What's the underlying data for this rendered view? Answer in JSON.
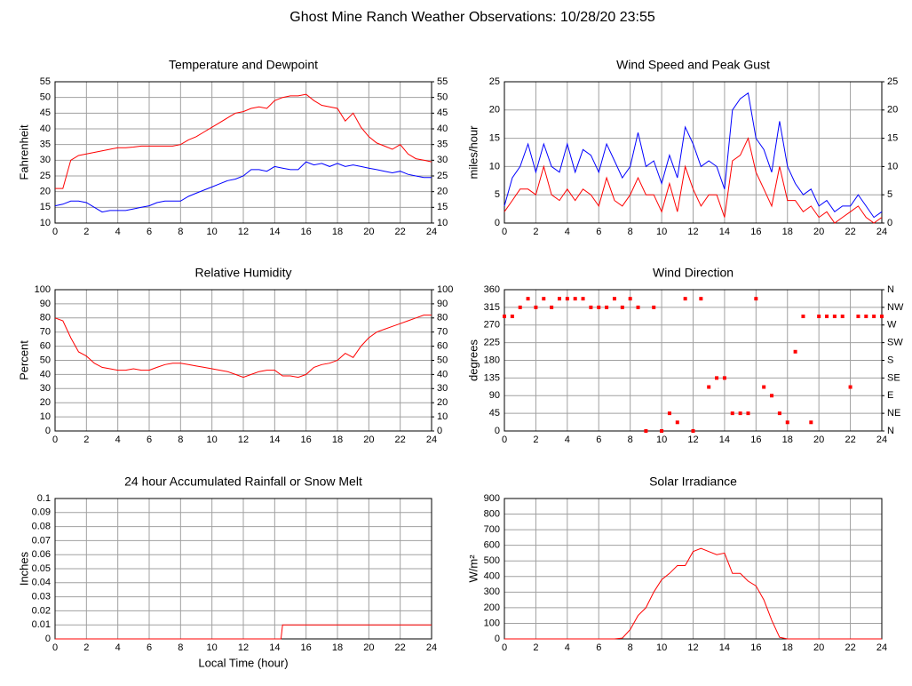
{
  "title": "Ghost Mine Ranch Weather Observations: 10/28/20 23:55",
  "chart_data": [
    {
      "type": "line",
      "title": "Temperature and Dewpoint",
      "ylabel": "Fahrenheit",
      "x": [
        0,
        0.5,
        1,
        1.5,
        2,
        2.5,
        3,
        3.5,
        4,
        4.5,
        5,
        5.5,
        6,
        6.5,
        7,
        7.5,
        8,
        8.5,
        9,
        9.5,
        10,
        10.5,
        11,
        11.5,
        12,
        12.5,
        13,
        13.5,
        14,
        14.5,
        15,
        15.5,
        16,
        16.5,
        17,
        17.5,
        18,
        18.5,
        19,
        19.5,
        20,
        20.5,
        21,
        21.5,
        22,
        22.5,
        23,
        23.5,
        24
      ],
      "series": [
        {
          "color": "#ff0000",
          "values": [
            21,
            21,
            30,
            31.5,
            32,
            32.5,
            33,
            33.5,
            34,
            34,
            34.2,
            34.5,
            34.5,
            34.5,
            34.5,
            34.5,
            35,
            36.5,
            37.5,
            39,
            40.5,
            42,
            43.5,
            45,
            45.5,
            46.5,
            47,
            46.5,
            49,
            50,
            50.5,
            50.5,
            51,
            49,
            47.5,
            47,
            46.5,
            42.5,
            45,
            40.5,
            37.5,
            35.5,
            34.5,
            33.5,
            35,
            32,
            30.5,
            30,
            29.5
          ]
        },
        {
          "color": "#0000ff",
          "values": [
            15.5,
            16,
            17,
            17,
            16.5,
            15,
            13.5,
            14,
            14,
            14,
            14.5,
            15,
            15.5,
            16.5,
            17,
            17,
            17,
            18.5,
            19.5,
            20.5,
            21.5,
            22.5,
            23.5,
            24,
            25,
            27,
            27,
            26.5,
            28,
            27.5,
            27,
            27,
            29.5,
            28.5,
            29,
            28,
            29,
            28,
            28.5,
            28,
            27.5,
            27,
            26.5,
            26,
            26.5,
            25.5,
            25,
            24.5,
            24.5
          ]
        }
      ],
      "xlim": [
        0,
        24
      ],
      "xticks": [
        0,
        2,
        4,
        6,
        8,
        10,
        12,
        14,
        16,
        18,
        20,
        22,
        24
      ],
      "ylim": [
        10,
        55
      ],
      "yticks": [
        10,
        15,
        20,
        25,
        30,
        35,
        40,
        45,
        50,
        55
      ],
      "y2lim": [
        10,
        55
      ],
      "y2ticks": [
        10,
        15,
        20,
        25,
        30,
        35,
        40,
        45,
        50,
        55
      ],
      "grid": true
    },
    {
      "type": "line",
      "title": "Wind Speed and Peak Gust",
      "ylabel": "miles/hour",
      "x": [
        0,
        0.5,
        1,
        1.5,
        2,
        2.5,
        3,
        3.5,
        4,
        4.5,
        5,
        5.5,
        6,
        6.5,
        7,
        7.5,
        8,
        8.5,
        9,
        9.5,
        10,
        10.5,
        11,
        11.5,
        12,
        12.5,
        13,
        13.5,
        14,
        14.5,
        15,
        15.5,
        16,
        16.5,
        17,
        17.5,
        18,
        18.5,
        19,
        19.5,
        20,
        20.5,
        21,
        21.5,
        22,
        22.5,
        23,
        23.5,
        24
      ],
      "series": [
        {
          "color": "#0000ff",
          "values": [
            3,
            8,
            10,
            14,
            9,
            14,
            10,
            9,
            14,
            9,
            13,
            12,
            9,
            14,
            11,
            8,
            10,
            16,
            10,
            11,
            7,
            12,
            8,
            17,
            14,
            10,
            11,
            10,
            6,
            20,
            22,
            23,
            15,
            13,
            9,
            18,
            10,
            7,
            5,
            6,
            3,
            4,
            2,
            3,
            3,
            5,
            3,
            1,
            2
          ]
        },
        {
          "color": "#ff0000",
          "values": [
            2,
            4,
            6,
            6,
            5,
            10,
            5,
            4,
            6,
            4,
            6,
            5,
            3,
            8,
            4,
            3,
            5,
            8,
            5,
            5,
            2,
            7,
            2,
            10,
            6,
            3,
            5,
            5,
            1,
            11,
            12,
            15,
            9,
            6,
            3,
            10,
            4,
            4,
            2,
            3,
            1,
            2,
            0,
            1,
            2,
            3,
            1,
            0,
            1
          ]
        }
      ],
      "xlim": [
        0,
        24
      ],
      "xticks": [
        0,
        2,
        4,
        6,
        8,
        10,
        12,
        14,
        16,
        18,
        20,
        22,
        24
      ],
      "ylim": [
        0,
        25
      ],
      "yticks": [
        0,
        5,
        10,
        15,
        20,
        25
      ],
      "y2lim": [
        0,
        25
      ],
      "y2ticks": [
        0,
        5,
        10,
        15,
        20,
        25
      ],
      "grid": true
    },
    {
      "type": "line",
      "title": "Relative Humidity",
      "ylabel": "Percent",
      "x": [
        0,
        0.5,
        1,
        1.5,
        2,
        2.5,
        3,
        3.5,
        4,
        4.5,
        5,
        5.5,
        6,
        6.5,
        7,
        7.5,
        8,
        8.5,
        9,
        9.5,
        10,
        10.5,
        11,
        11.5,
        12,
        12.5,
        13,
        13.5,
        14,
        14.5,
        15,
        15.5,
        16,
        16.5,
        17,
        17.5,
        18,
        18.5,
        19,
        19.5,
        20,
        20.5,
        21,
        21.5,
        22,
        22.5,
        23,
        23.5,
        24
      ],
      "series": [
        {
          "color": "#ff0000",
          "values": [
            80,
            78,
            66,
            56,
            53,
            48,
            45,
            44,
            43,
            43,
            44,
            43,
            43,
            45,
            47,
            48,
            48,
            47,
            46,
            45,
            44,
            43,
            42,
            40,
            38,
            40,
            42,
            43,
            43,
            39,
            39,
            38,
            40,
            45,
            47,
            48,
            50,
            55,
            52,
            60,
            66,
            70,
            72,
            74,
            76,
            78,
            80,
            82,
            82
          ]
        }
      ],
      "xlim": [
        0,
        24
      ],
      "xticks": [
        0,
        2,
        4,
        6,
        8,
        10,
        12,
        14,
        16,
        18,
        20,
        22,
        24
      ],
      "ylim": [
        0,
        100
      ],
      "yticks": [
        0,
        10,
        20,
        30,
        40,
        50,
        60,
        70,
        80,
        90,
        100
      ],
      "y2lim": [
        0,
        100
      ],
      "y2ticks": [
        0,
        10,
        20,
        30,
        40,
        50,
        60,
        70,
        80,
        90,
        100
      ],
      "grid": true
    },
    {
      "type": "scatter",
      "title": "Wind Direction",
      "ylabel": "degrees",
      "x": [
        0,
        0.5,
        1,
        1.5,
        2,
        2.5,
        3,
        3.5,
        4,
        4.5,
        5,
        5.5,
        6,
        6.5,
        7,
        7.5,
        8,
        8.5,
        9,
        9.5,
        10,
        10.5,
        11,
        11.5,
        12,
        12.5,
        13,
        13.5,
        14,
        14.5,
        15,
        15.5,
        16,
        16.5,
        17,
        17.5,
        18,
        18.5,
        19,
        19.5,
        20,
        20.5,
        21,
        21.5,
        22,
        22.5,
        23,
        23.5,
        24
      ],
      "series": [
        {
          "color": "#ff0000",
          "values": [
            292,
            292,
            315,
            337,
            315,
            337,
            315,
            337,
            337,
            337,
            337,
            315,
            315,
            315,
            337,
            315,
            337,
            315,
            0,
            315,
            0,
            45,
            22,
            337,
            0,
            337,
            112,
            135,
            135,
            45,
            45,
            45,
            337,
            112,
            90,
            45,
            22,
            202,
            292,
            22,
            292,
            292,
            292,
            292,
            112,
            292,
            292,
            292,
            292
          ]
        }
      ],
      "xlim": [
        0,
        24
      ],
      "xticks": [
        0,
        2,
        4,
        6,
        8,
        10,
        12,
        14,
        16,
        18,
        20,
        22,
        24
      ],
      "ylim": [
        0,
        360
      ],
      "yticks": [
        0,
        45,
        90,
        135,
        180,
        225,
        270,
        315,
        360
      ],
      "y2lim": [
        0,
        360
      ],
      "y2ticks": [
        {
          "value": 0,
          "label": "N"
        },
        {
          "value": 45,
          "label": "NE"
        },
        {
          "value": 90,
          "label": "E"
        },
        {
          "value": 135,
          "label": "SE"
        },
        {
          "value": 180,
          "label": "S"
        },
        {
          "value": 225,
          "label": "SW"
        },
        {
          "value": 270,
          "label": "W"
        },
        {
          "value": 315,
          "label": "NW"
        },
        {
          "value": 360,
          "label": "N"
        }
      ],
      "grid": true
    },
    {
      "type": "line",
      "title": "24 hour Accumulated Rainfall or Snow Melt",
      "ylabel": "Inches",
      "xlabel": "Local Time (hour)",
      "x": [
        0,
        14.4,
        14.5,
        24
      ],
      "series": [
        {
          "color": "#ff0000",
          "values": [
            0,
            0,
            0.01,
            0.01
          ]
        }
      ],
      "xlim": [
        0,
        24
      ],
      "xticks": [
        0,
        2,
        4,
        6,
        8,
        10,
        12,
        14,
        16,
        18,
        20,
        22,
        24
      ],
      "ylim": [
        0,
        0.1
      ],
      "yticks": [
        0,
        0.01,
        0.02,
        0.03,
        0.04,
        0.05,
        0.06,
        0.07,
        0.08,
        0.09,
        0.1
      ],
      "grid": true
    },
    {
      "type": "line",
      "title": "Solar Irradiance",
      "ylabel": "W/m²",
      "x": [
        0,
        0.5,
        1,
        1.5,
        2,
        2.5,
        3,
        3.5,
        4,
        4.5,
        5,
        5.5,
        6,
        6.5,
        7,
        7.5,
        8,
        8.5,
        9,
        9.5,
        10,
        10.5,
        11,
        11.5,
        12,
        12.5,
        13,
        13.5,
        14,
        14.5,
        15,
        15.5,
        16,
        16.5,
        17,
        17.5,
        18,
        18.5,
        19,
        19.5,
        20,
        20.5,
        21,
        21.5,
        22,
        22.5,
        23,
        23.5,
        24
      ],
      "series": [
        {
          "color": "#ff0000",
          "values": [
            0,
            0,
            0,
            0,
            0,
            0,
            0,
            0,
            0,
            0,
            0,
            0,
            0,
            0,
            0,
            5,
            60,
            150,
            200,
            300,
            380,
            420,
            470,
            470,
            560,
            580,
            560,
            540,
            550,
            420,
            420,
            370,
            340,
            250,
            120,
            10,
            0,
            0,
            0,
            0,
            0,
            0,
            0,
            0,
            0,
            0,
            0,
            0,
            0
          ]
        }
      ],
      "xlim": [
        0,
        24
      ],
      "xticks": [
        0,
        2,
        4,
        6,
        8,
        10,
        12,
        14,
        16,
        18,
        20,
        22,
        24
      ],
      "ylim": [
        0,
        900
      ],
      "yticks": [
        0,
        100,
        200,
        300,
        400,
        500,
        600,
        700,
        800,
        900
      ],
      "grid": true
    }
  ]
}
